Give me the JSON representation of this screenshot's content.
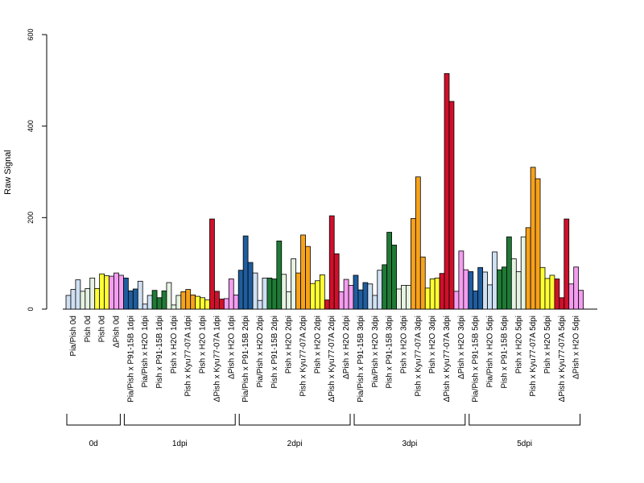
{
  "chart_data": {
    "type": "bar",
    "ylabel": "Raw Signal",
    "ylim": [
      0,
      600
    ],
    "yticks": [
      0,
      200,
      400,
      600
    ],
    "replicates_per_category": 3,
    "categories": [
      {
        "label": "Pia/Pish 0d",
        "color": "#cfe0f3",
        "values": [
          30,
          43,
          64
        ]
      },
      {
        "label": "Pish 0d",
        "color": "#e6f3e2",
        "values": [
          39,
          45,
          68
        ]
      },
      {
        "label": "Pish 0d",
        "color": "#ffff33",
        "values": [
          45,
          77,
          73
        ]
      },
      {
        "label": "ΔPish 0d",
        "color": "#f49df0",
        "values": [
          72,
          79,
          74
        ]
      },
      {
        "label": "Pia/Pish x P91-15B 1dpi",
        "color": "#1f5d9e",
        "values": [
          68,
          40,
          44
        ]
      },
      {
        "label": "Pia/Pish x H2O 1dpi",
        "color": "#cfe0f3",
        "values": [
          61,
          11,
          30
        ]
      },
      {
        "label": "Pish x P91-15B 1dpi",
        "color": "#1f7a35",
        "values": [
          41,
          25,
          40
        ]
      },
      {
        "label": "Pish x H2O 1dpi",
        "color": "#e6f3e2",
        "values": [
          58,
          9,
          30
        ]
      },
      {
        "label": "Pish x Kyu77-07A 1dpi",
        "color": "#f7a21b",
        "values": [
          38,
          43,
          31
        ]
      },
      {
        "label": "Pish x H2O 1dpi",
        "color": "#ffff33",
        "values": [
          28,
          25,
          20
        ]
      },
      {
        "label": "ΔPish x Kyu77-07A 1dpi",
        "color": "#d0102b",
        "values": [
          197,
          39,
          22
        ]
      },
      {
        "label": "ΔPish x H2O 1dpi",
        "color": "#f49df0",
        "values": [
          23,
          66,
          31
        ]
      },
      {
        "label": "Pia/Pish x P91-15B 2dpi",
        "color": "#1f5d9e",
        "values": [
          85,
          160,
          102
        ]
      },
      {
        "label": "Pia/Pish x H2O 2dpi",
        "color": "#cfe0f3",
        "values": [
          79,
          19,
          68
        ]
      },
      {
        "label": "Pish x P91-15B 2dpi",
        "color": "#1f7a35",
        "values": [
          68,
          66,
          149
        ]
      },
      {
        "label": "Pish x H2O 2dpi",
        "color": "#e6f3e2",
        "values": [
          76,
          38,
          110
        ]
      },
      {
        "label": "Pish x Kyu77-07A 2dpi",
        "color": "#f7a21b",
        "values": [
          79,
          162,
          137
        ]
      },
      {
        "label": "Pish x H2O 2dpi",
        "color": "#ffff33",
        "values": [
          56,
          62,
          75
        ]
      },
      {
        "label": "ΔPish x Kyu77-07A 2dpi",
        "color": "#d0102b",
        "values": [
          20,
          204,
          121
        ]
      },
      {
        "label": "ΔPish x H2O 2dpi",
        "color": "#f49df0",
        "values": [
          38,
          65,
          52
        ]
      },
      {
        "label": "Pia/Pish x P91-15B 3dpi",
        "color": "#1f5d9e",
        "values": [
          74,
          42,
          58
        ]
      },
      {
        "label": "Pia/Pish x H2O 3dpi",
        "color": "#cfe0f3",
        "values": [
          55,
          30,
          85
        ]
      },
      {
        "label": "Pish x P91-15B 3dpi",
        "color": "#1f7a35",
        "values": [
          97,
          168,
          140
        ]
      },
      {
        "label": "Pish x H2O 3dpi",
        "color": "#e6f3e2",
        "values": [
          44,
          52,
          52
        ]
      },
      {
        "label": "Pish x Kyu77-07A 3dpi",
        "color": "#f7a21b",
        "values": [
          198,
          289,
          114
        ]
      },
      {
        "label": "Pish x H2O 3dpi",
        "color": "#ffff33",
        "values": [
          46,
          66,
          68
        ]
      },
      {
        "label": "ΔPish x Kyu77-07A 3dpi",
        "color": "#d0102b",
        "values": [
          78,
          515,
          454
        ]
      },
      {
        "label": "ΔPish x H2O 3dpi",
        "color": "#f49df0",
        "values": [
          39,
          127,
          86
        ]
      },
      {
        "label": "Pia/Pish x P91-15B 5dpi",
        "color": "#1f5d9e",
        "values": [
          82,
          40,
          91
        ]
      },
      {
        "label": "Pia/Pish x H2O 5dpi",
        "color": "#cfe0f3",
        "values": [
          81,
          53,
          125
        ]
      },
      {
        "label": "Pish x P91-15B 5dpi",
        "color": "#1f7a35",
        "values": [
          86,
          92,
          158
        ]
      },
      {
        "label": "Pish x H2O 5dpi",
        "color": "#e6f3e2",
        "values": [
          110,
          82,
          158
        ]
      },
      {
        "label": "Pish x Kyu77-07A 5dpi",
        "color": "#f7a21b",
        "values": [
          178,
          310,
          285
        ]
      },
      {
        "label": "Pish x H2O 5dpi",
        "color": "#ffff33",
        "values": [
          91,
          67,
          74
        ]
      },
      {
        "label": "ΔPish x Kyu77-07A 5dpi",
        "color": "#d0102b",
        "values": [
          66,
          25,
          197
        ]
      },
      {
        "label": "ΔPish x H2O 5dpi",
        "color": "#f49df0",
        "values": [
          55,
          92,
          41
        ]
      }
    ],
    "groups": [
      {
        "label": "0d",
        "start": 0,
        "end": 3
      },
      {
        "label": "1dpi",
        "start": 4,
        "end": 11
      },
      {
        "label": "2dpi",
        "start": 12,
        "end": 19
      },
      {
        "label": "3dpi",
        "start": 20,
        "end": 27
      },
      {
        "label": "5dpi",
        "start": 28,
        "end": 35
      }
    ]
  }
}
